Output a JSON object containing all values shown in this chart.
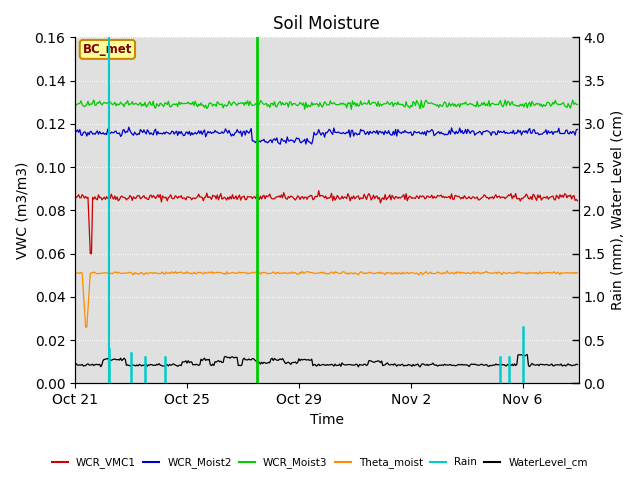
{
  "title": "Soil Moisture",
  "ylabel_left": "VWC (m3/m3)",
  "ylabel_right": "Rain (mm), Water Level (cm)",
  "xlabel": "Time",
  "ylim_left": [
    0.0,
    0.16
  ],
  "ylim_right": [
    0.0,
    4.0
  ],
  "yticks_left": [
    0.0,
    0.02,
    0.04,
    0.06,
    0.08,
    0.1,
    0.12,
    0.14,
    0.16
  ],
  "yticks_right": [
    0.0,
    0.5,
    1.0,
    1.5,
    2.0,
    2.5,
    3.0,
    3.5,
    4.0
  ],
  "background_color": "#e0e0e0",
  "annotation_label": "BC_met",
  "vline_cyan_day": 1.2,
  "vline_green_day": 6.5,
  "xtick_labels": [
    "Oct 21",
    "Oct 25",
    "Oct 29",
    "Nov 2",
    "Nov 6"
  ],
  "xtick_days": [
    0,
    4,
    8,
    12,
    16
  ],
  "n_days": 18,
  "wcr_vmc1_base": 0.086,
  "wcr_vmc1_noise": 0.0008,
  "wcr_m2_base": 0.116,
  "wcr_m2_noise": 0.0008,
  "wcr_m3_base": 0.129,
  "wcr_m3_noise": 0.0008,
  "theta_base": 0.051,
  "theta_noise": 0.0003,
  "water_base": 0.0085,
  "water_noise": 0.0003,
  "legend_entries": [
    {
      "label": "WCR_VMC1",
      "color": "#cc0000"
    },
    {
      "label": "WCR_Moist2",
      "color": "#0000cc"
    },
    {
      "label": "WCR_Moist3",
      "color": "#00cc00"
    },
    {
      "label": "Theta_moist",
      "color": "#ff8c00"
    },
    {
      "label": "Rain",
      "color": "#00cccc"
    },
    {
      "label": "WaterLevel_cm",
      "color": "#000000"
    }
  ]
}
